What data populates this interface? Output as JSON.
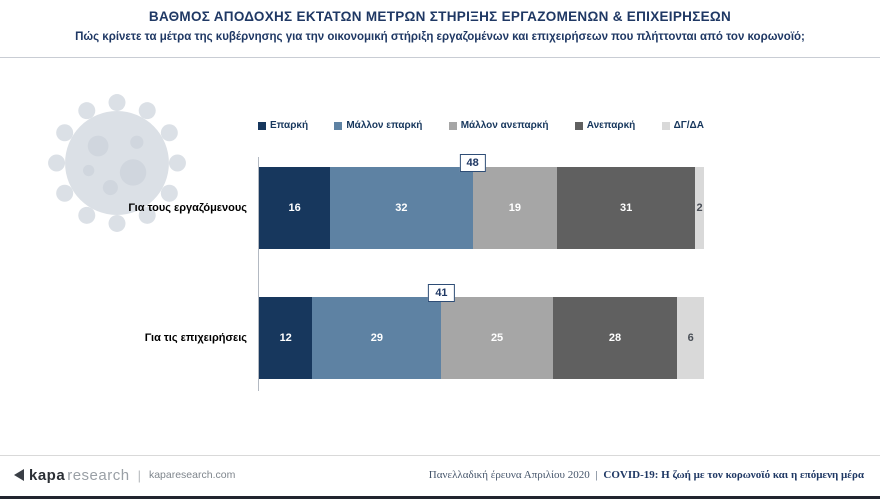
{
  "header": {
    "title": "ΒΑΘΜΟΣ ΑΠΟΔΟΧΗΣ ΕΚΤΑΤΩΝ ΜΕΤΡΩΝ ΣΤΗΡΙΞΗΣ ΕΡΓΑΖΟΜΕΝΩΝ & ΕΠΙΧΕΙΡΗΣΕΩΝ",
    "subtitle": "Πώς κρίνετε τα μέτρα της κυβέρνησης για την οικονομική στήριξη εργαζομένων και επιχειρήσεων που πλήττονται από τον κορωνοϊό;"
  },
  "chart_data": {
    "type": "bar",
    "orientation": "horizontal-stacked",
    "title": "ΒΑΘΜΟΣ ΑΠΟΔΟΧΗΣ ΕΚΤΑΤΩΝ ΜΕΤΡΩΝ ΣΤΗΡΙΞΗΣ ΕΡΓΑΖΟΜΕΝΩΝ & ΕΠΙΧΕΙΡΗΣΕΩΝ",
    "categories": [
      "Για τους εργαζόμενους",
      "Για τις επιχειρήσεις"
    ],
    "series": [
      {
        "name": "Επαρκή",
        "color": "#17375d",
        "label_color": "#ffffff",
        "values": [
          16,
          12
        ]
      },
      {
        "name": "Μάλλον επαρκή",
        "color": "#5e82a3",
        "label_color": "#ffffff",
        "values": [
          32,
          29
        ]
      },
      {
        "name": "Μάλλον ανεπαρκή",
        "color": "#a6a6a6",
        "label_color": "#ffffff",
        "values": [
          19,
          25
        ]
      },
      {
        "name": "Ανεπαρκή",
        "color": "#606060",
        "label_color": "#ffffff",
        "values": [
          31,
          28
        ]
      },
      {
        "name": "ΔΓ/ΔΑ",
        "color": "#d9d9d9",
        "label_color": "#4a4f57",
        "values": [
          2,
          6
        ]
      }
    ],
    "annotations": [
      {
        "label": "48",
        "at_percent": 48
      },
      {
        "label": "41",
        "at_percent": 41
      }
    ],
    "xlim": [
      0,
      100
    ],
    "legend_position": "top",
    "value_labels": true,
    "grid": false
  },
  "footer": {
    "brand_kapa": "kapa",
    "brand_research": "research",
    "left_separator": "|",
    "brand_url": "kaparesearch.com",
    "survey_info": "Πανελλαδική έρευνα Απριλίου 2020",
    "right_separator": "|",
    "report_title": "COVID-19: Η ζωή με τον κορωνοϊό και η επόμενη μέρα"
  }
}
